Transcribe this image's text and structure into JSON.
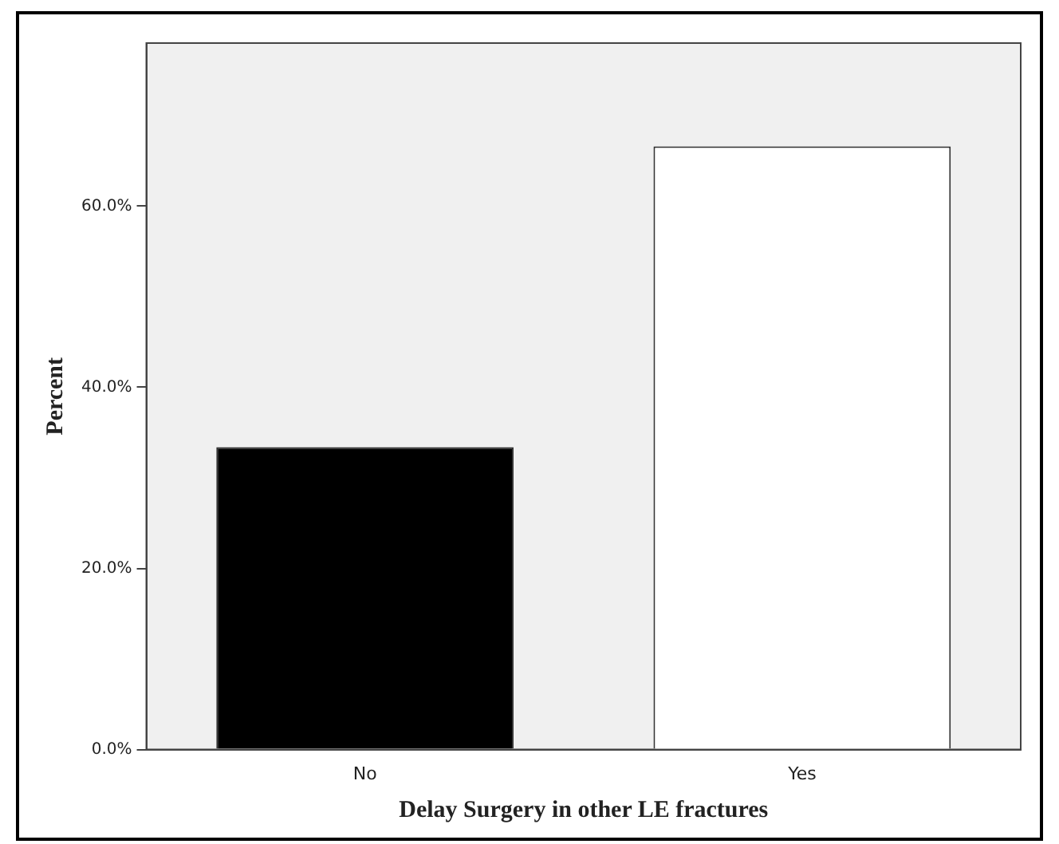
{
  "chart_data": {
    "type": "bar",
    "xlabel": "Delay Surgery in other LE fractures",
    "ylabel": "Percent",
    "categories": [
      "No",
      "Yes"
    ],
    "values": [
      33.4,
      66.6
    ],
    "colors": [
      "#000000",
      "#ffffff"
    ],
    "ylim": [
      0,
      78
    ],
    "yticks": [
      {
        "value": 0,
        "label": "0.0%"
      },
      {
        "value": 20,
        "label": "20.0%"
      },
      {
        "value": 40,
        "label": "40.0%"
      },
      {
        "value": 60,
        "label": "60.0%"
      }
    ],
    "grid": false,
    "legend": false
  }
}
